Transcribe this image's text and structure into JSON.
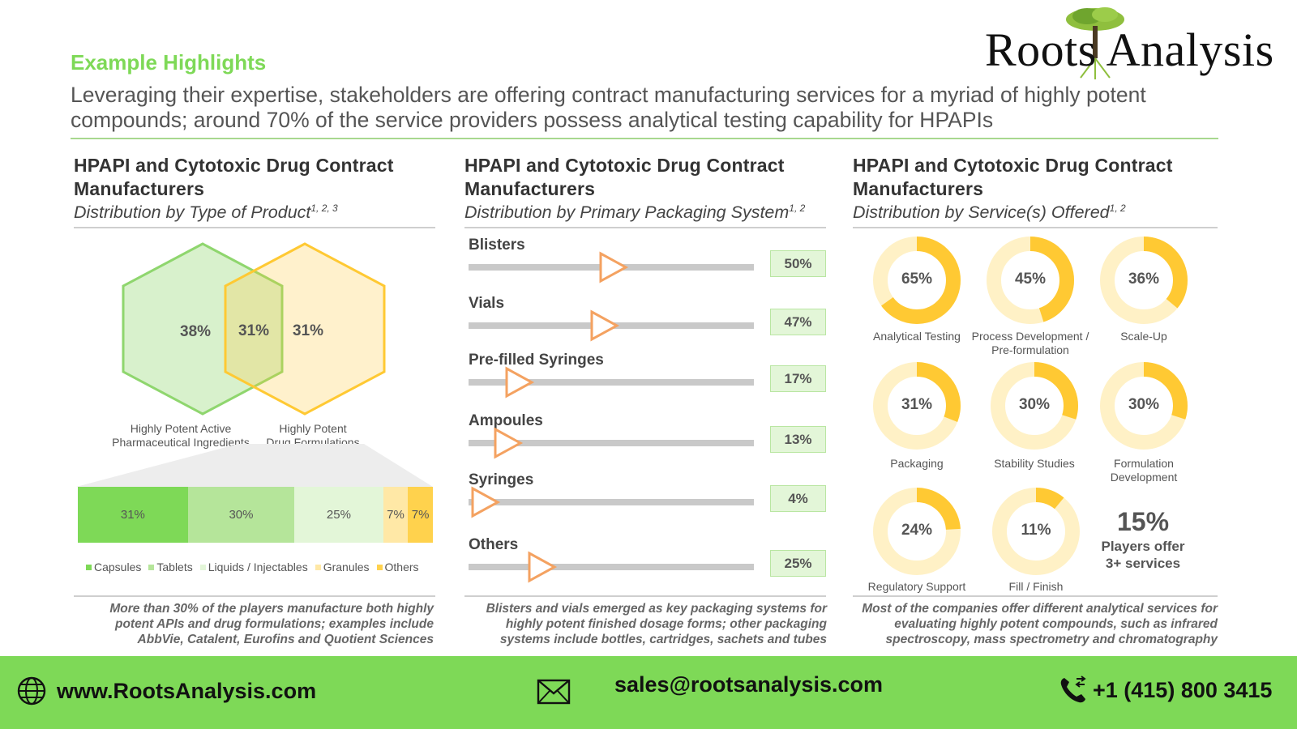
{
  "logo": {
    "text": "Roots Analysis"
  },
  "highlight_title": "Example Highlights",
  "subtitle": "Leveraging their expertise, stakeholders are offering contract manufacturing services for a myriad of highly potent compounds; around 70% of the service providers possess analytical testing capability for HPAPIs",
  "panels": [
    {
      "title": "HPAPI and Cytotoxic Drug Contract Manufacturers",
      "subtitle": "Distribution by Type of Product",
      "sup": "1, 2, 3",
      "note": "More than 30% of the players manufacture both highly potent APIs and drug formulations; examples include AbbVie, Catalent, Eurofins and Quotient Sciences"
    },
    {
      "title": "HPAPI and Cytotoxic Drug Contract Manufacturers",
      "subtitle": "Distribution by Primary Packaging System",
      "sup": "1, 2",
      "note": "Blisters and vials emerged as key packaging systems for highly potent finished dosage forms; other packaging systems include bottles, cartridges, sachets and tubes"
    },
    {
      "title": "HPAPI and Cytotoxic Drug Contract Manufacturers",
      "subtitle": "Distribution by Service(s) Offered",
      "sup": "1, 2",
      "note": "Most of the companies offer different analytical services for evaluating highly potent compounds, such as infrared spectroscopy, mass spectrometry and chromatography"
    }
  ],
  "venn": {
    "left_pct": "38%",
    "overlap_pct": "31%",
    "right_pct": "31%",
    "left_label": [
      "Highly Potent Active",
      "Pharmaceutical Ingredients"
    ],
    "right_label": [
      "Highly Potent",
      "Drug Formulations"
    ],
    "colors": {
      "left": "#8fd66e",
      "right": "#ffc933"
    }
  },
  "product_bar": {
    "segments": [
      {
        "name": "Capsules",
        "value": 31,
        "label": "31%",
        "color": "#7ed957"
      },
      {
        "name": "Tablets",
        "value": 30,
        "label": "30%",
        "color": "#b5e59a"
      },
      {
        "name": "Liquids / Injectables",
        "value": 25,
        "label": "25%",
        "color": "#e3f6d8"
      },
      {
        "name": "Granules",
        "value": 7,
        "label": "7%",
        "color": "#ffe8a6"
      },
      {
        "name": "Others",
        "value": 7,
        "label": "7%",
        "color": "#ffd24d"
      }
    ]
  },
  "packaging": [
    {
      "label": "Blisters",
      "value": 50,
      "display": "50%"
    },
    {
      "label": "Vials",
      "value": 47,
      "display": "47%"
    },
    {
      "label": "Pre-filled Syringes",
      "value": 17,
      "display": "17%"
    },
    {
      "label": "Ampoules",
      "value": 13,
      "display": "13%"
    },
    {
      "label": "Syringes",
      "value": 4,
      "display": "4%"
    },
    {
      "label": "Others",
      "value": 25,
      "display": "25%"
    }
  ],
  "services": [
    {
      "label": "Analytical Testing",
      "value": 65,
      "display": "65%"
    },
    {
      "label": "Process Development / Pre-formulation",
      "value": 45,
      "display": "45%"
    },
    {
      "label": "Scale-Up",
      "value": 36,
      "display": "36%"
    },
    {
      "label": "Packaging",
      "value": 31,
      "display": "31%"
    },
    {
      "label": "Stability Studies",
      "value": 30,
      "display": "30%"
    },
    {
      "label": "Formulation Development",
      "value": 30,
      "display": "30%"
    },
    {
      "label": "Regulatory Support",
      "value": 24,
      "display": "24%"
    },
    {
      "label": "Fill / Finish",
      "value": 11,
      "display": "11%"
    }
  ],
  "service_highlight": {
    "pct": "15%",
    "text": "Players offer 3+ services"
  },
  "colors": {
    "accent_green": "#7ed957",
    "donut_fill": "#ffc933",
    "donut_track": "#fff1c6",
    "arrow": "#f4a261"
  },
  "footer": {
    "website": "www.RootsAnalysis.com",
    "email": "sales@rootsanalysis.com",
    "phone": "+1 (415) 800 3415",
    "icons": [
      "globe-icon",
      "envelope-icon",
      "phone-icon"
    ]
  }
}
